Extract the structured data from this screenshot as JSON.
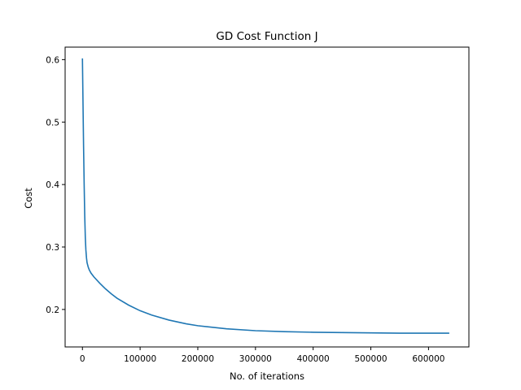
{
  "chart_data": {
    "type": "line",
    "title": "GD Cost Function J",
    "xlabel": "No. of iterations",
    "ylabel": "Cost",
    "xlim": [
      -30000,
      670000
    ],
    "ylim": [
      0.14,
      0.62
    ],
    "xticks": [
      0,
      100000,
      200000,
      300000,
      400000,
      500000,
      600000
    ],
    "yticks": [
      0.2,
      0.3,
      0.4,
      0.5,
      0.6
    ],
    "xtick_labels": [
      "0",
      "100000",
      "200000",
      "300000",
      "400000",
      "500000",
      "600000"
    ],
    "ytick_labels": [
      "0.2",
      "0.3",
      "0.4",
      "0.5",
      "0.6"
    ],
    "grid": false,
    "line_color": "#1f77b4",
    "series": [
      {
        "x": [
          0,
          1000,
          2000,
          3000,
          4000,
          5000,
          6000,
          7000,
          8000,
          10000,
          12000,
          15000,
          20000,
          30000,
          40000,
          50000,
          60000,
          80000,
          100000,
          120000,
          150000,
          180000,
          200000,
          250000,
          300000,
          350000,
          400000,
          450000,
          500000,
          550000,
          600000,
          636000
        ],
        "y": [
          0.602,
          0.53,
          0.46,
          0.4,
          0.35,
          0.315,
          0.295,
          0.283,
          0.275,
          0.268,
          0.263,
          0.258,
          0.252,
          0.242,
          0.233,
          0.225,
          0.218,
          0.207,
          0.198,
          0.191,
          0.183,
          0.177,
          0.174,
          0.169,
          0.166,
          0.1645,
          0.1635,
          0.163,
          0.1625,
          0.162,
          0.162,
          0.162
        ]
      }
    ]
  }
}
